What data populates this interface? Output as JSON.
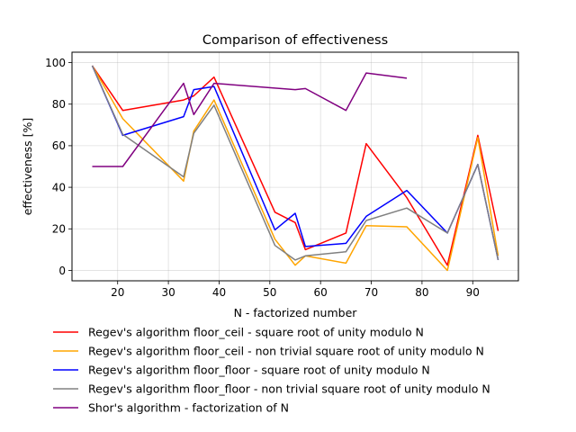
{
  "chart_data": {
    "type": "line",
    "title": "Comparison of effectiveness",
    "xlabel": "N - factorized number",
    "ylabel": "effectiveness [%]",
    "xlim": [
      11,
      99
    ],
    "ylim": [
      -5,
      105
    ],
    "xticks": [
      20,
      30,
      40,
      50,
      60,
      70,
      80,
      90
    ],
    "yticks": [
      0,
      20,
      40,
      60,
      80,
      100
    ],
    "grid": true,
    "legend_position": "below",
    "series": [
      {
        "name": "Regev's algorithm floor_ceil - square root of unity modulo N",
        "color": "#ff0000",
        "x": [
          15,
          21,
          33,
          35,
          39,
          51,
          55,
          57,
          65,
          69,
          77,
          85,
          91,
          95
        ],
        "y": [
          98.5,
          77,
          82,
          84,
          93,
          28,
          23,
          10,
          18,
          61,
          35,
          2.5,
          65,
          19
        ]
      },
      {
        "name": "Regev's algorithm floor_ceil - non trivial square root of unity modulo N",
        "color": "#ffa500",
        "x": [
          15,
          21,
          33,
          35,
          39,
          51,
          55,
          57,
          65,
          69,
          77,
          85,
          91,
          95
        ],
        "y": [
          98.5,
          73,
          43,
          67,
          82,
          15,
          2.5,
          7,
          3.5,
          21.5,
          21,
          0,
          64,
          7
        ]
      },
      {
        "name": "Regev's algorithm floor_floor - square root of unity modulo N",
        "color": "#0000ff",
        "x": [
          15,
          21,
          33,
          35,
          39,
          51,
          55,
          57,
          65,
          69,
          77,
          85,
          91,
          95
        ],
        "y": [
          98.5,
          65,
          74,
          87,
          88.5,
          19.5,
          27.5,
          11.5,
          13,
          26,
          38.5,
          18,
          51,
          5
        ]
      },
      {
        "name": "Regev's algorithm floor_floor - non trivial square root of unity modulo N",
        "color": "#808080",
        "x": [
          15,
          21,
          33,
          35,
          39,
          51,
          55,
          57,
          65,
          69,
          77,
          85,
          91,
          95
        ],
        "y": [
          98.5,
          65.5,
          45,
          66,
          79.5,
          12,
          5,
          7,
          9,
          24,
          30,
          18,
          51,
          5
        ]
      },
      {
        "name": "Shor's algorithm - factorization of N",
        "color": "#800080",
        "x": [
          15,
          21,
          33,
          35,
          39,
          55,
          57,
          65,
          69,
          77
        ],
        "y": [
          50,
          50,
          90,
          75,
          90,
          87,
          87.5,
          77,
          95,
          92.5
        ]
      }
    ]
  }
}
